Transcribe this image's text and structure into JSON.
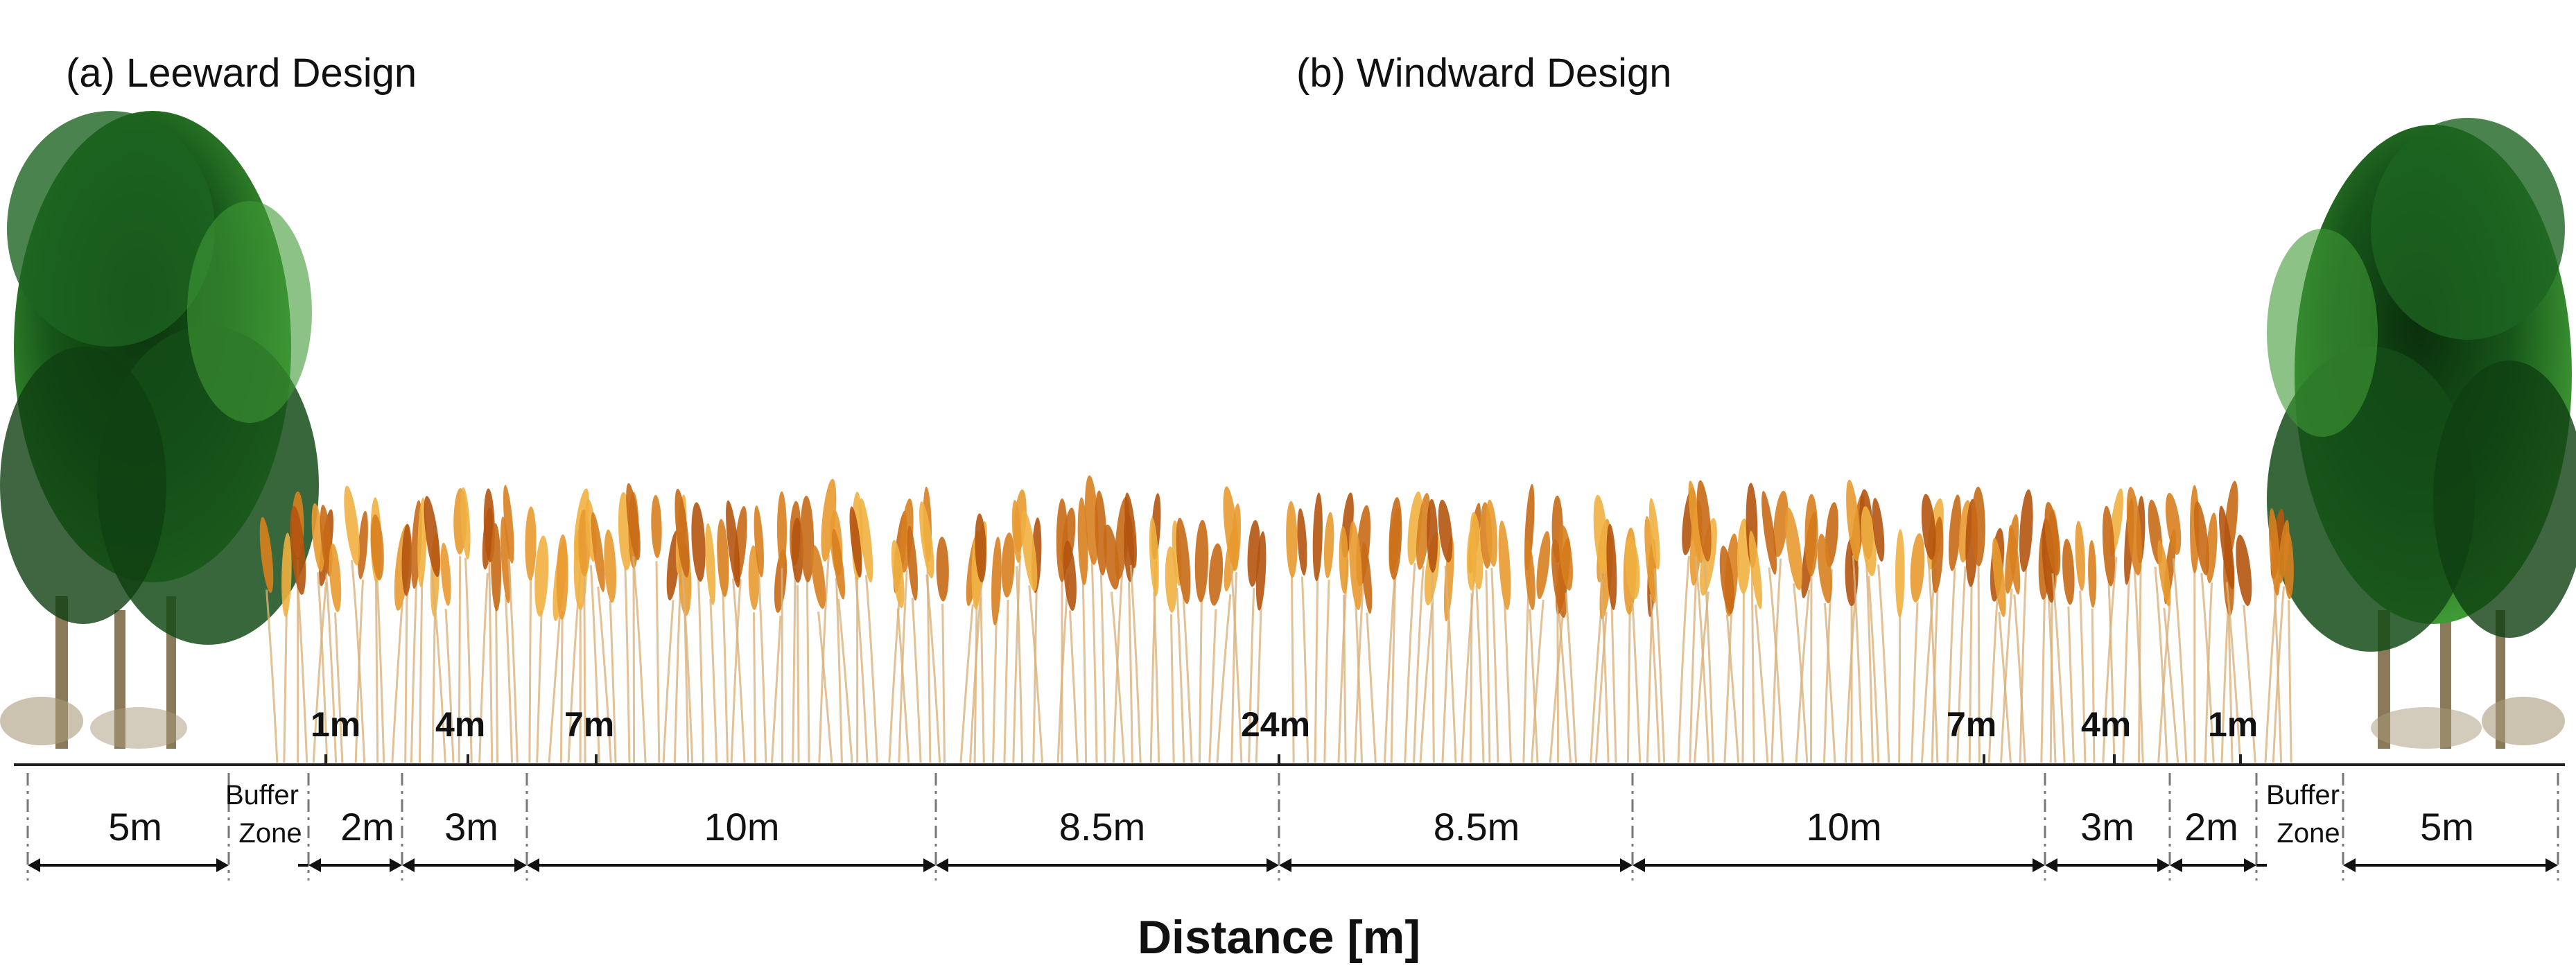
{
  "panels": {
    "leeward_title": "(a) Leeward Design",
    "windward_title": "(b) Windward Design"
  },
  "leeward": {
    "markers": [
      "1m",
      "4m",
      "7m"
    ],
    "segments": [
      "5m",
      "2m",
      "3m",
      "10m",
      "8.5m"
    ],
    "buffer": [
      "Buffer",
      "Zone"
    ]
  },
  "center_marker": "24m",
  "windward": {
    "markers": [
      "7m",
      "4m",
      "1m"
    ],
    "segments": [
      "8.5m",
      "10m",
      "3m",
      "2m",
      "5m"
    ],
    "buffer": [
      "Buffer",
      "Zone"
    ]
  },
  "axis_title": "Distance [m]",
  "colors": {
    "tree_dark": "#0f3f12",
    "tree_mid": "#1f6b22",
    "tree_light": "#3f9a35",
    "trunk": "#8a7a5a",
    "wheat_dark": "#b4540f",
    "wheat_mid": "#d8801e",
    "wheat_light": "#f0b040",
    "stem": "#d9b27a",
    "ink": "#111111"
  }
}
